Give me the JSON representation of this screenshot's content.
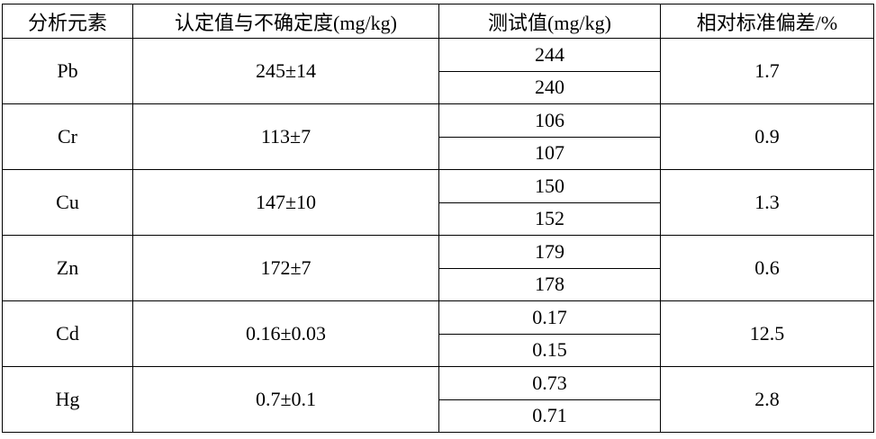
{
  "table": {
    "headers": [
      "分析元素",
      "认定值与不确定度(mg/kg)",
      "测试值(mg/kg)",
      "相对标准偏差/%"
    ],
    "rows": [
      {
        "element": "Pb",
        "certified": "245±14",
        "measured": [
          "244",
          "240"
        ],
        "rsd": "1.7"
      },
      {
        "element": "Cr",
        "certified": "113±7",
        "measured": [
          "106",
          "107"
        ],
        "rsd": "0.9"
      },
      {
        "element": "Cu",
        "certified": "147±10",
        "measured": [
          "150",
          "152"
        ],
        "rsd": "1.3"
      },
      {
        "element": "Zn",
        "certified": "172±7",
        "measured": [
          "179",
          "178"
        ],
        "rsd": "0.6"
      },
      {
        "element": "Cd",
        "certified": "0.16±0.03",
        "measured": [
          "0.17",
          "0.15"
        ],
        "rsd": "12.5"
      },
      {
        "element": "Hg",
        "certified": "0.7±0.1",
        "measured": [
          "0.73",
          "0.71"
        ],
        "rsd": "2.8"
      }
    ]
  }
}
